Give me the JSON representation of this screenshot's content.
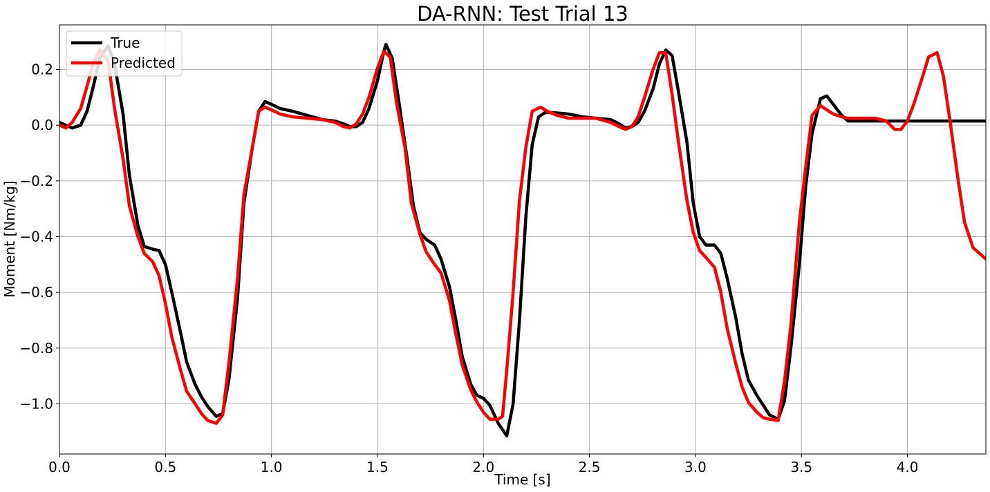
{
  "chart_data": {
    "type": "line",
    "title": "DA-RNN: Test Trial 13",
    "xlabel": "Time [s]",
    "ylabel": "Moment [Nm/kg]",
    "xlim": [
      0,
      4.37
    ],
    "ylim": [
      -1.18,
      0.36
    ],
    "xticks": [
      0.0,
      0.5,
      1.0,
      1.5,
      2.0,
      2.5,
      3.0,
      3.5,
      4.0
    ],
    "xtick_labels": [
      "0.0",
      "0.5",
      "1.0",
      "1.5",
      "2.0",
      "2.5",
      "3.0",
      "3.5",
      "4.0"
    ],
    "yticks": [
      0.2,
      0.0,
      -0.2,
      -0.4,
      -0.6,
      -0.8,
      -1.0
    ],
    "ytick_labels": [
      "0.2",
      "0.0",
      "−0.2",
      "−0.4",
      "−0.6",
      "−0.8",
      "−1.0"
    ],
    "grid": true,
    "legend_position": "top-left",
    "series": [
      {
        "name": "True",
        "color": "#000000",
        "points": [
          [
            0.0,
            0.01
          ],
          [
            0.03,
            0.0
          ],
          [
            0.06,
            -0.01
          ],
          [
            0.1,
            0.0
          ],
          [
            0.13,
            0.05
          ],
          [
            0.16,
            0.14
          ],
          [
            0.19,
            0.24
          ],
          [
            0.23,
            0.285
          ],
          [
            0.26,
            0.22
          ],
          [
            0.3,
            0.04
          ],
          [
            0.33,
            -0.18
          ],
          [
            0.37,
            -0.36
          ],
          [
            0.4,
            -0.435
          ],
          [
            0.44,
            -0.445
          ],
          [
            0.47,
            -0.45
          ],
          [
            0.5,
            -0.5
          ],
          [
            0.53,
            -0.6
          ],
          [
            0.57,
            -0.74
          ],
          [
            0.6,
            -0.85
          ],
          [
            0.64,
            -0.93
          ],
          [
            0.67,
            -0.975
          ],
          [
            0.7,
            -1.01
          ],
          [
            0.74,
            -1.045
          ],
          [
            0.77,
            -1.035
          ],
          [
            0.8,
            -0.91
          ],
          [
            0.84,
            -0.62
          ],
          [
            0.87,
            -0.28
          ],
          [
            0.91,
            -0.08
          ],
          [
            0.94,
            0.05
          ],
          [
            0.97,
            0.085
          ],
          [
            1.0,
            0.075
          ],
          [
            1.04,
            0.06
          ],
          [
            1.1,
            0.05
          ],
          [
            1.17,
            0.035
          ],
          [
            1.24,
            0.02
          ],
          [
            1.3,
            0.015
          ],
          [
            1.34,
            0.005
          ],
          [
            1.37,
            -0.005
          ],
          [
            1.4,
            -0.005
          ],
          [
            1.43,
            0.01
          ],
          [
            1.46,
            0.06
          ],
          [
            1.5,
            0.16
          ],
          [
            1.53,
            0.265
          ],
          [
            1.54,
            0.29
          ],
          [
            1.57,
            0.24
          ],
          [
            1.6,
            0.09
          ],
          [
            1.64,
            -0.12
          ],
          [
            1.67,
            -0.29
          ],
          [
            1.7,
            -0.385
          ],
          [
            1.73,
            -0.41
          ],
          [
            1.77,
            -0.43
          ],
          [
            1.8,
            -0.48
          ],
          [
            1.84,
            -0.58
          ],
          [
            1.87,
            -0.7
          ],
          [
            1.9,
            -0.83
          ],
          [
            1.94,
            -0.93
          ],
          [
            1.97,
            -0.97
          ],
          [
            2.0,
            -0.98
          ],
          [
            2.03,
            -1.005
          ],
          [
            2.07,
            -1.07
          ],
          [
            2.11,
            -1.115
          ],
          [
            2.14,
            -1.0
          ],
          [
            2.17,
            -0.7
          ],
          [
            2.2,
            -0.33
          ],
          [
            2.23,
            -0.07
          ],
          [
            2.26,
            0.03
          ],
          [
            2.29,
            0.045
          ],
          [
            2.33,
            0.045
          ],
          [
            2.4,
            0.04
          ],
          [
            2.47,
            0.03
          ],
          [
            2.53,
            0.025
          ],
          [
            2.6,
            0.02
          ],
          [
            2.64,
            0.005
          ],
          [
            2.67,
            -0.01
          ],
          [
            2.7,
            -0.005
          ],
          [
            2.73,
            0.01
          ],
          [
            2.76,
            0.05
          ],
          [
            2.8,
            0.13
          ],
          [
            2.83,
            0.22
          ],
          [
            2.86,
            0.27
          ],
          [
            2.89,
            0.25
          ],
          [
            2.92,
            0.12
          ],
          [
            2.96,
            -0.06
          ],
          [
            2.99,
            -0.28
          ],
          [
            3.02,
            -0.4
          ],
          [
            3.05,
            -0.43
          ],
          [
            3.09,
            -0.43
          ],
          [
            3.12,
            -0.46
          ],
          [
            3.15,
            -0.55
          ],
          [
            3.19,
            -0.69
          ],
          [
            3.22,
            -0.82
          ],
          [
            3.25,
            -0.915
          ],
          [
            3.29,
            -0.97
          ],
          [
            3.32,
            -1.005
          ],
          [
            3.35,
            -1.04
          ],
          [
            3.39,
            -1.055
          ],
          [
            3.42,
            -0.99
          ],
          [
            3.45,
            -0.8
          ],
          [
            3.49,
            -0.5
          ],
          [
            3.52,
            -0.22
          ],
          [
            3.55,
            -0.03
          ],
          [
            3.59,
            0.095
          ],
          [
            3.62,
            0.105
          ],
          [
            3.65,
            0.075
          ],
          [
            3.69,
            0.035
          ],
          [
            3.72,
            0.015
          ],
          [
            3.8,
            0.015
          ],
          [
            3.9,
            0.015
          ],
          [
            4.0,
            0.015
          ],
          [
            4.1,
            0.015
          ],
          [
            4.2,
            0.015
          ],
          [
            4.37,
            0.015
          ]
        ]
      },
      {
        "name": "Predicted",
        "color": "#ff0000",
        "points": [
          [
            0.0,
            0.0
          ],
          [
            0.03,
            -0.01
          ],
          [
            0.06,
            0.01
          ],
          [
            0.1,
            0.06
          ],
          [
            0.13,
            0.14
          ],
          [
            0.16,
            0.225
          ],
          [
            0.19,
            0.27
          ],
          [
            0.23,
            0.23
          ],
          [
            0.26,
            0.06
          ],
          [
            0.3,
            -0.12
          ],
          [
            0.33,
            -0.29
          ],
          [
            0.37,
            -0.4
          ],
          [
            0.4,
            -0.46
          ],
          [
            0.44,
            -0.49
          ],
          [
            0.47,
            -0.54
          ],
          [
            0.5,
            -0.64
          ],
          [
            0.53,
            -0.76
          ],
          [
            0.57,
            -0.875
          ],
          [
            0.6,
            -0.955
          ],
          [
            0.64,
            -1.0
          ],
          [
            0.67,
            -1.035
          ],
          [
            0.7,
            -1.06
          ],
          [
            0.74,
            -1.07
          ],
          [
            0.77,
            -1.04
          ],
          [
            0.8,
            -0.85
          ],
          [
            0.84,
            -0.55
          ],
          [
            0.87,
            -0.25
          ],
          [
            0.91,
            -0.08
          ],
          [
            0.94,
            0.05
          ],
          [
            0.97,
            0.065
          ],
          [
            1.0,
            0.055
          ],
          [
            1.04,
            0.04
          ],
          [
            1.1,
            0.03
          ],
          [
            1.17,
            0.025
          ],
          [
            1.24,
            0.02
          ],
          [
            1.3,
            0.01
          ],
          [
            1.34,
            -0.005
          ],
          [
            1.37,
            -0.01
          ],
          [
            1.4,
            0.005
          ],
          [
            1.43,
            0.04
          ],
          [
            1.46,
            0.1
          ],
          [
            1.5,
            0.205
          ],
          [
            1.53,
            0.265
          ],
          [
            1.56,
            0.245
          ],
          [
            1.59,
            0.08
          ],
          [
            1.63,
            -0.08
          ],
          [
            1.66,
            -0.28
          ],
          [
            1.7,
            -0.39
          ],
          [
            1.73,
            -0.455
          ],
          [
            1.77,
            -0.5
          ],
          [
            1.8,
            -0.53
          ],
          [
            1.84,
            -0.63
          ],
          [
            1.87,
            -0.75
          ],
          [
            1.9,
            -0.86
          ],
          [
            1.94,
            -0.95
          ],
          [
            1.97,
            -0.995
          ],
          [
            2.0,
            -1.03
          ],
          [
            2.03,
            -1.055
          ],
          [
            2.07,
            -1.055
          ],
          [
            2.09,
            -1.045
          ],
          [
            2.11,
            -0.88
          ],
          [
            2.14,
            -0.6
          ],
          [
            2.17,
            -0.27
          ],
          [
            2.2,
            -0.08
          ],
          [
            2.23,
            0.05
          ],
          [
            2.27,
            0.065
          ],
          [
            2.3,
            0.05
          ],
          [
            2.35,
            0.035
          ],
          [
            2.4,
            0.025
          ],
          [
            2.47,
            0.025
          ],
          [
            2.53,
            0.025
          ],
          [
            2.6,
            0.01
          ],
          [
            2.64,
            -0.005
          ],
          [
            2.67,
            -0.015
          ],
          [
            2.7,
            -0.005
          ],
          [
            2.73,
            0.03
          ],
          [
            2.76,
            0.1
          ],
          [
            2.8,
            0.2
          ],
          [
            2.83,
            0.26
          ],
          [
            2.86,
            0.26
          ],
          [
            2.89,
            0.11
          ],
          [
            2.92,
            -0.06
          ],
          [
            2.96,
            -0.27
          ],
          [
            2.99,
            -0.385
          ],
          [
            3.02,
            -0.45
          ],
          [
            3.05,
            -0.475
          ],
          [
            3.09,
            -0.51
          ],
          [
            3.12,
            -0.6
          ],
          [
            3.15,
            -0.73
          ],
          [
            3.19,
            -0.855
          ],
          [
            3.22,
            -0.94
          ],
          [
            3.25,
            -0.995
          ],
          [
            3.29,
            -1.03
          ],
          [
            3.32,
            -1.05
          ],
          [
            3.35,
            -1.055
          ],
          [
            3.39,
            -1.06
          ],
          [
            3.42,
            -0.92
          ],
          [
            3.45,
            -0.72
          ],
          [
            3.49,
            -0.35
          ],
          [
            3.52,
            -0.15
          ],
          [
            3.55,
            0.035
          ],
          [
            3.59,
            0.07
          ],
          [
            3.62,
            0.055
          ],
          [
            3.65,
            0.04
          ],
          [
            3.69,
            0.03
          ],
          [
            3.72,
            0.025
          ],
          [
            3.8,
            0.025
          ],
          [
            3.85,
            0.025
          ],
          [
            3.9,
            0.015
          ],
          [
            3.94,
            -0.015
          ],
          [
            3.97,
            -0.015
          ],
          [
            4.0,
            0.015
          ],
          [
            4.03,
            0.075
          ],
          [
            4.07,
            0.17
          ],
          [
            4.1,
            0.245
          ],
          [
            4.14,
            0.26
          ],
          [
            4.17,
            0.175
          ],
          [
            4.2,
            0.02
          ],
          [
            4.24,
            -0.2
          ],
          [
            4.27,
            -0.35
          ],
          [
            4.31,
            -0.44
          ],
          [
            4.37,
            -0.48
          ]
        ]
      }
    ]
  }
}
